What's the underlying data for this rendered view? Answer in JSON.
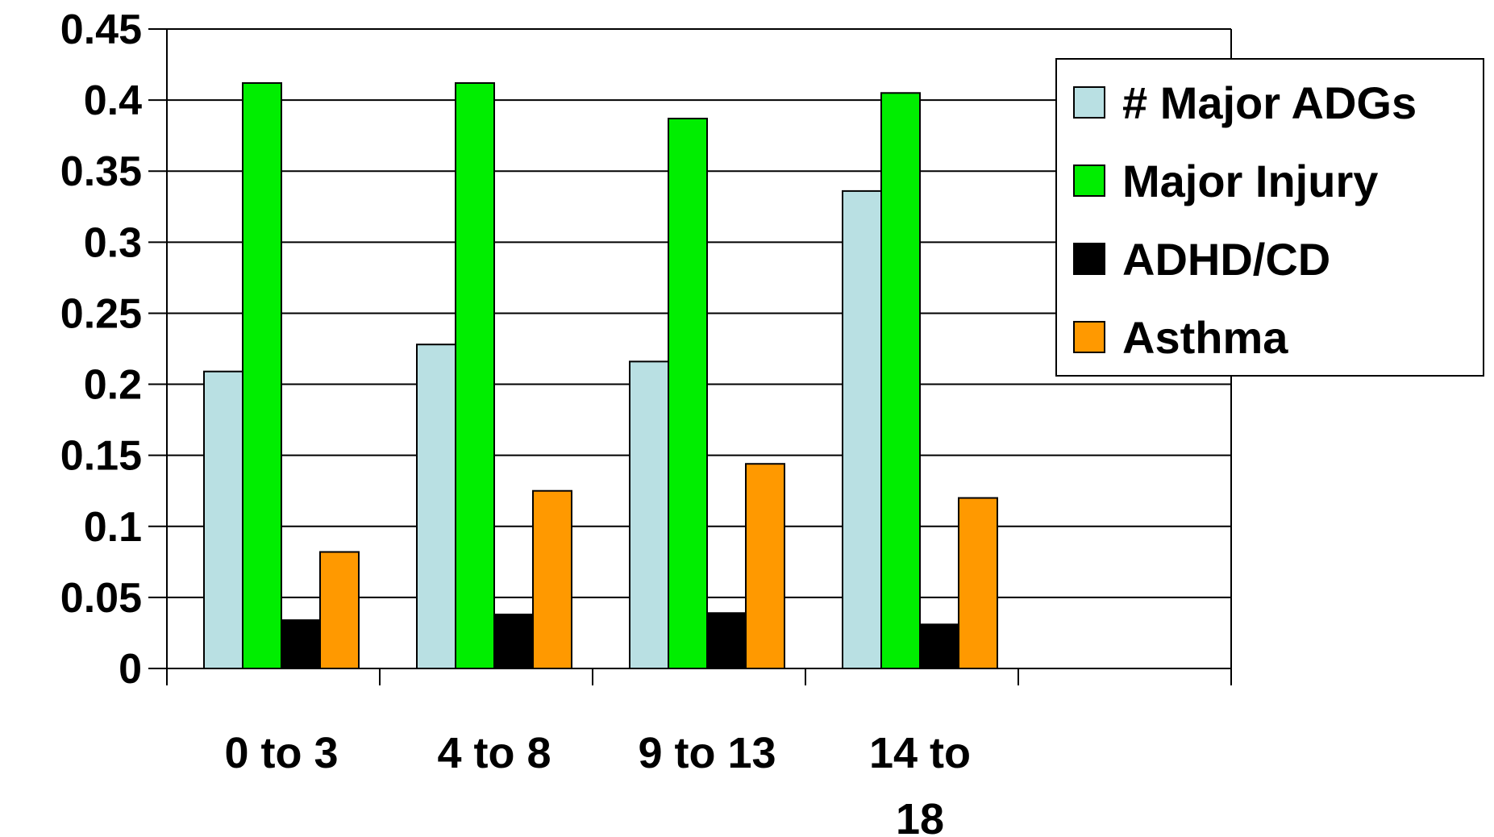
{
  "chart_data": {
    "type": "bar",
    "title": "",
    "xlabel": "",
    "ylabel": "",
    "ylim": [
      0,
      0.45
    ],
    "y_ticks": [
      "0",
      "0.05",
      "0.1",
      "0.15",
      "0.2",
      "0.25",
      "0.3",
      "0.35",
      "0.4",
      "0.45"
    ],
    "category_slots": 5,
    "categories": [
      [
        "0 to 3"
      ],
      [
        "4 to 8"
      ],
      [
        "9 to 13"
      ],
      [
        "14 to",
        "18"
      ]
    ],
    "grid": "horizontal",
    "legend_position": "top-right",
    "series": [
      {
        "name": "# Major ADGs",
        "color": "#b9e0e3",
        "values": [
          0.209,
          0.228,
          0.216,
          0.336
        ]
      },
      {
        "name": "Major Injury",
        "color": "#00ee00",
        "values": [
          0.412,
          0.412,
          0.387,
          0.405
        ]
      },
      {
        "name": "ADHD/CD",
        "color": "#000000",
        "values": [
          0.034,
          0.038,
          0.039,
          0.031
        ]
      },
      {
        "name": "Asthma",
        "color": "#ff9900",
        "values": [
          0.082,
          0.125,
          0.144,
          0.12
        ]
      }
    ]
  }
}
